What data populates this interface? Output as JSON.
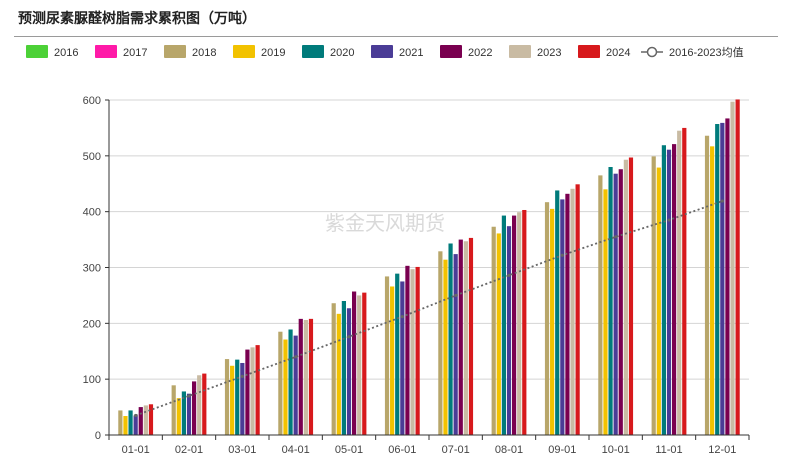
{
  "title": "预测尿素脲醛树脂需求累积图（万吨）",
  "watermark": "紫金天风期货",
  "chart_data": {
    "type": "bar",
    "categories": [
      "01-01",
      "02-01",
      "03-01",
      "04-01",
      "05-01",
      "06-01",
      "07-01",
      "08-01",
      "09-01",
      "10-01",
      "11-01",
      "12-01"
    ],
    "ylim": [
      0,
      600
    ],
    "yticks": [
      0,
      100,
      200,
      300,
      400,
      500,
      600
    ],
    "grid": true,
    "legend_position": "top",
    "series": [
      {
        "name": "2016",
        "color": "#4cd137",
        "values": [
          null,
          null,
          null,
          null,
          null,
          null,
          null,
          null,
          null,
          null,
          null,
          null
        ]
      },
      {
        "name": "2017",
        "color": "#ff1aa8",
        "values": [
          null,
          null,
          null,
          null,
          null,
          null,
          null,
          null,
          null,
          null,
          null,
          null
        ]
      },
      {
        "name": "2018",
        "color": "#b8a66a",
        "values": [
          44,
          89,
          136,
          185,
          236,
          284,
          329,
          373,
          417,
          465,
          499,
          536
        ]
      },
      {
        "name": "2019",
        "color": "#f2c200",
        "values": [
          34,
          66,
          124,
          171,
          217,
          266,
          314,
          361,
          405,
          440,
          479,
          517
        ]
      },
      {
        "name": "2020",
        "color": "#007b7b",
        "values": [
          44,
          78,
          135,
          189,
          240,
          289,
          343,
          393,
          438,
          480,
          519,
          557
        ]
      },
      {
        "name": "2021",
        "color": "#4a3c96",
        "values": [
          35,
          74,
          129,
          178,
          227,
          275,
          324,
          374,
          422,
          468,
          511,
          559
        ]
      },
      {
        "name": "2022",
        "color": "#7a0050",
        "values": [
          50,
          96,
          153,
          208,
          257,
          303,
          350,
          393,
          432,
          476,
          521,
          567
        ]
      },
      {
        "name": "2023",
        "color": "#c9bba3",
        "values": [
          53,
          107,
          157,
          206,
          250,
          297,
          347,
          399,
          441,
          493,
          545,
          597
        ]
      },
      {
        "name": "2024",
        "color": "#d7191c",
        "values": [
          55,
          110,
          161,
          208,
          255,
          301,
          353,
          403,
          449,
          497,
          550,
          601
        ]
      }
    ],
    "average": {
      "name": "2016-2023均值",
      "color": "#666666",
      "values": [
        35,
        70,
        105,
        140,
        176,
        212,
        250,
        286,
        322,
        355,
        385,
        419
      ]
    }
  }
}
